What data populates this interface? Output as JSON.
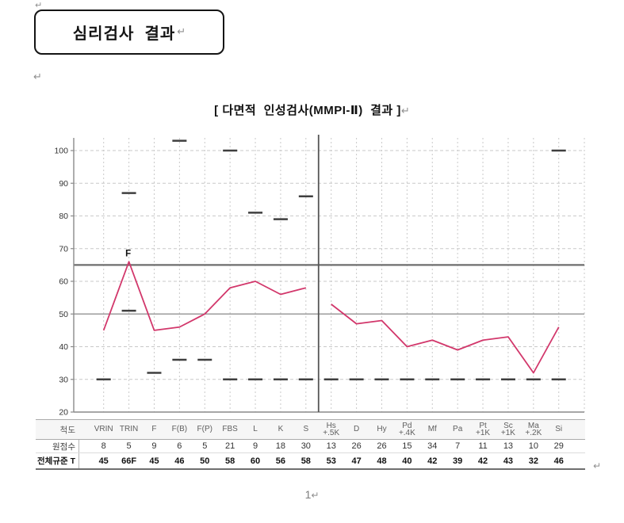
{
  "document": {
    "title": "심리검사  결과",
    "paragraph_mark": "↵",
    "page_number": "1"
  },
  "chart": {
    "title": "[ 다면적  인성검사(MMPI-Ⅱ)  결과 ]"
  },
  "chart_data": {
    "type": "line",
    "title": "다면적 인성검사(MMPI-Ⅱ) 결과",
    "categories": [
      "VRIN",
      "TRIN",
      "F",
      "F(B)",
      "F(P)",
      "FBS",
      "L",
      "K",
      "S",
      "Hs+.5K",
      "D",
      "Hy",
      "Pd+.4K",
      "Mf",
      "Pa",
      "Pt+1K",
      "Sc+1K",
      "Ma+.2K",
      "Si"
    ],
    "series": [
      {
        "name": "validity-scales-T",
        "start_index": 0,
        "values": [
          45,
          66,
          45,
          46,
          50,
          58,
          60,
          56,
          58
        ]
      },
      {
        "name": "clinical-scales-T",
        "start_index": 9,
        "values": [
          53,
          47,
          48,
          40,
          42,
          39,
          42,
          43,
          32,
          46
        ]
      }
    ],
    "point_label": {
      "index": 1,
      "text": "F"
    },
    "markers": [
      [
        30
      ],
      [
        87,
        51
      ],
      [
        32
      ],
      [
        103,
        36
      ],
      [
        36
      ],
      [
        100,
        30
      ],
      [
        81,
        30
      ],
      [
        79,
        30
      ],
      [
        86,
        30
      ],
      [
        30
      ],
      [
        30
      ],
      [
        30
      ],
      [
        30
      ],
      [
        30
      ],
      [
        30
      ],
      [
        30
      ],
      [
        30
      ],
      [
        30
      ],
      [
        100,
        30
      ]
    ],
    "reference_lines": [
      {
        "t": 65,
        "style": "bold"
      },
      {
        "t": 50,
        "style": "normal"
      }
    ],
    "divider_after_index": 8,
    "ylim": [
      20,
      105
    ],
    "yticks": [
      20,
      30,
      40,
      50,
      60,
      70,
      80,
      90,
      100
    ],
    "grid": true,
    "legend": "none",
    "line_color": "#d2376b",
    "marker_color": "#3f3f3f",
    "grid_color": "#c9c9c9",
    "axis_color": "#8a8a8a"
  },
  "table": {
    "row_labels": {
      "scale": "척도",
      "raw": "원점수",
      "t": "전체규준 T"
    },
    "columns": [
      {
        "scale_line1": "VRIN",
        "scale_line2": "",
        "raw": "8",
        "t": "45"
      },
      {
        "scale_line1": "TRIN",
        "scale_line2": "",
        "raw": "5",
        "t": "66F"
      },
      {
        "scale_line1": "F",
        "scale_line2": "",
        "raw": "9",
        "t": "45"
      },
      {
        "scale_line1": "F(B)",
        "scale_line2": "",
        "raw": "6",
        "t": "46"
      },
      {
        "scale_line1": "F(P)",
        "scale_line2": "",
        "raw": "5",
        "t": "50"
      },
      {
        "scale_line1": "FBS",
        "scale_line2": "",
        "raw": "21",
        "t": "58"
      },
      {
        "scale_line1": "L",
        "scale_line2": "",
        "raw": "9",
        "t": "60"
      },
      {
        "scale_line1": "K",
        "scale_line2": "",
        "raw": "18",
        "t": "56"
      },
      {
        "scale_line1": "S",
        "scale_line2": "",
        "raw": "30",
        "t": "58"
      },
      {
        "scale_line1": "Hs",
        "scale_line2": "+.5K",
        "raw": "13",
        "t": "53"
      },
      {
        "scale_line1": "D",
        "scale_line2": "",
        "raw": "26",
        "t": "47"
      },
      {
        "scale_line1": "Hy",
        "scale_line2": "",
        "raw": "26",
        "t": "48"
      },
      {
        "scale_line1": "Pd",
        "scale_line2": "+.4K",
        "raw": "15",
        "t": "40"
      },
      {
        "scale_line1": "Mf",
        "scale_line2": "",
        "raw": "34",
        "t": "42"
      },
      {
        "scale_line1": "Pa",
        "scale_line2": "",
        "raw": "7",
        "t": "39"
      },
      {
        "scale_line1": "Pt",
        "scale_line2": "+1K",
        "raw": "11",
        "t": "42"
      },
      {
        "scale_line1": "Sc",
        "scale_line2": "+1K",
        "raw": "13",
        "t": "43"
      },
      {
        "scale_line1": "Ma",
        "scale_line2": "+.2K",
        "raw": "10",
        "t": "32"
      },
      {
        "scale_line1": "Si",
        "scale_line2": "",
        "raw": "29",
        "t": "46"
      }
    ]
  }
}
